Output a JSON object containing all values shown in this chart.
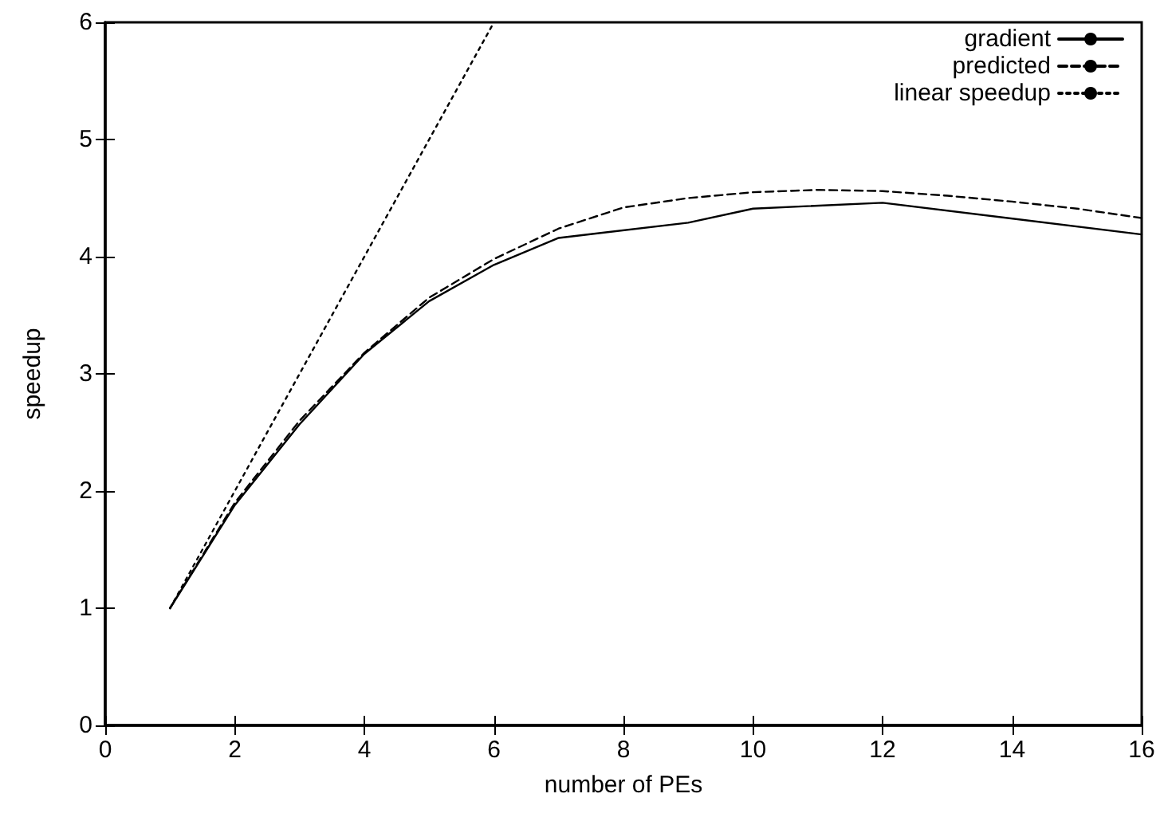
{
  "chart_data": {
    "type": "line",
    "xlabel": "number of PEs",
    "ylabel": "speedup",
    "xlim": [
      0,
      16
    ],
    "xticks": [
      0,
      2,
      4,
      6,
      8,
      10,
      12,
      14,
      16
    ],
    "ylim": [
      0,
      6
    ],
    "yticks": [
      0,
      1,
      2,
      3,
      4,
      5,
      6
    ],
    "grid": false,
    "legend": "top right",
    "marker": "none",
    "series": [
      {
        "name": "gradient",
        "color": "#000000",
        "line_style": "solid",
        "x": [
          1,
          2,
          3,
          4,
          5,
          6,
          7,
          9,
          10,
          12,
          16
        ],
        "values": [
          1,
          1.88,
          2.57,
          3.17,
          3.62,
          3.93,
          4.16,
          4.29,
          4.41,
          4.46,
          4.19
        ]
      },
      {
        "name": "predicted",
        "color": "#000000",
        "line_style": "dashed",
        "x": [
          1,
          2,
          3,
          4,
          5,
          6,
          7,
          8,
          9,
          10,
          11,
          12,
          13,
          14,
          15,
          16
        ],
        "values": [
          1,
          1.9,
          2.6,
          3.18,
          3.65,
          3.98,
          4.24,
          4.42,
          4.5,
          4.55,
          4.57,
          4.56,
          4.52,
          4.47,
          4.41,
          4.33
        ]
      },
      {
        "name": "linear speedup",
        "color": "#000000",
        "line_style": "dotted",
        "x": [
          1,
          6
        ],
        "values": [
          1,
          6
        ]
      }
    ]
  }
}
